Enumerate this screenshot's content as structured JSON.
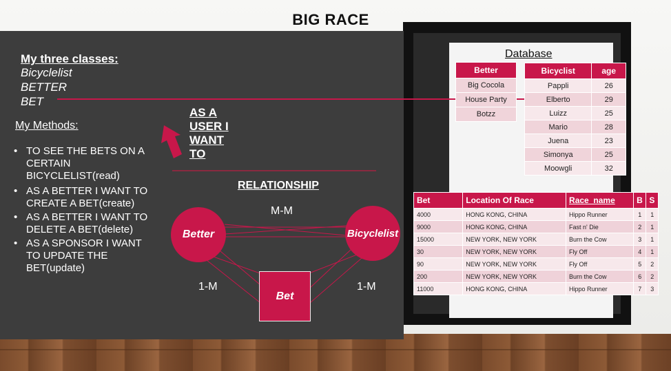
{
  "slide": {
    "title": "BIG RACE"
  },
  "classes": {
    "heading": "My three classes:",
    "items": [
      "Bicyclelist",
      "BETTER",
      "BET"
    ]
  },
  "methods": {
    "heading": "My Methods:",
    "items": [
      [
        "TO SEE THE BETS ON A",
        "CERTAIN",
        "BICYCLELIST(read)"
      ],
      [
        "AS A BETTER I WANT TO",
        "CREATE A BET(create)"
      ],
      [
        "AS A BETTER I WANT TO",
        "DELETE A BET(delete)"
      ],
      [
        "AS A SPONSOR I WANT",
        "TO UPDATE THE",
        "BET(update)"
      ]
    ]
  },
  "user_story": [
    "AS A",
    "USER I",
    "WANT",
    "TO"
  ],
  "relationship": {
    "heading": "RELATIONSHIP",
    "mm": "M-M",
    "om_left": "1-M",
    "om_right": "1-M",
    "nodes": {
      "better": "Better",
      "bicyclelist": "Bicyclelist",
      "bet": "Bet"
    }
  },
  "database": {
    "title": "Database",
    "better_table": {
      "header": "Better",
      "rows": [
        "Big Cocola",
        "House Party",
        "Botzz"
      ]
    },
    "bicyclist_table": {
      "headers": [
        "Bicyclist",
        "age"
      ],
      "rows": [
        [
          "Pappli",
          "26"
        ],
        [
          "Elberto",
          "29"
        ],
        [
          "Luizz",
          "25"
        ],
        [
          "Mario",
          "28"
        ],
        [
          "Juena",
          "23"
        ],
        [
          "Simonya",
          "25"
        ],
        [
          "Moowgli",
          "32"
        ]
      ]
    },
    "bet_table": {
      "headers": [
        "Bet",
        "Location Of Race",
        "Race_name",
        "B",
        "S"
      ],
      "rows": [
        [
          "4000",
          "HONG KONG, CHINA",
          "Hippo Runner",
          "1",
          "1"
        ],
        [
          "9000",
          "HONG KONG, CHINA",
          "Fast n' Die",
          "2",
          "1"
        ],
        [
          "15000",
          "NEW YORK, NEW YORK",
          "Burn the Cow",
          "3",
          "1"
        ],
        [
          "30",
          "NEW YORK, NEW YORK",
          "Fly Off",
          "4",
          "1"
        ],
        [
          "90",
          "NEW YORK, NEW YORK",
          "Fly Off",
          "5",
          "2"
        ],
        [
          "200",
          "NEW YORK, NEW YORK",
          "Burn the Cow",
          "6",
          "2"
        ],
        [
          "11000",
          "HONG KONG, CHINA",
          "Hippo Runner",
          "7",
          "3"
        ]
      ]
    }
  },
  "colors": {
    "accent": "#c8174a",
    "panel": "#3d3d3d"
  }
}
